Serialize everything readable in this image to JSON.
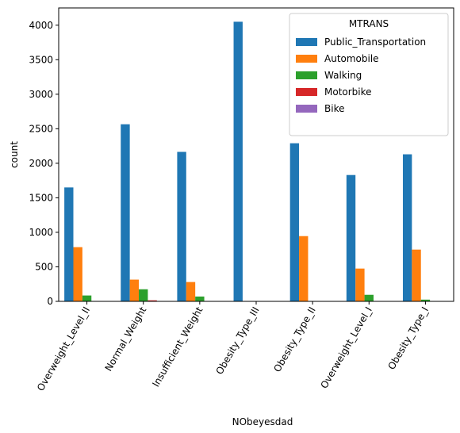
{
  "chart_data": {
    "type": "bar",
    "title": "",
    "xlabel": "NObeyesdad",
    "ylabel": "count",
    "ylim": [
      0,
      4250
    ],
    "yticks": [
      0,
      500,
      1000,
      1500,
      2000,
      2500,
      3000,
      3500,
      4000
    ],
    "categories": [
      "Overweight_Level_II",
      "Normal_Weight",
      "Insufficient_Weight",
      "Obesity_Type_III",
      "Obesity_Type_II",
      "Overweight_Level_I",
      "Obesity_Type_I"
    ],
    "legend": {
      "title": "MTRANS",
      "placement": "top-right"
    },
    "series": [
      {
        "name": "Public_Transportation",
        "color": "#1f77b4",
        "values": [
          1650,
          2565,
          2165,
          4050,
          2290,
          1830,
          2130
        ]
      },
      {
        "name": "Automobile",
        "color": "#ff7f0e",
        "values": [
          785,
          315,
          280,
          0,
          945,
          475,
          750
        ]
      },
      {
        "name": "Walking",
        "color": "#2ca02c",
        "values": [
          85,
          175,
          70,
          0,
          5,
          95,
          25
        ]
      },
      {
        "name": "Motorbike",
        "color": "#d62728",
        "values": [
          5,
          15,
          5,
          0,
          3,
          5,
          5
        ]
      },
      {
        "name": "Bike",
        "color": "#9467bd",
        "values": [
          2,
          5,
          3,
          0,
          2,
          2,
          2
        ]
      }
    ]
  }
}
